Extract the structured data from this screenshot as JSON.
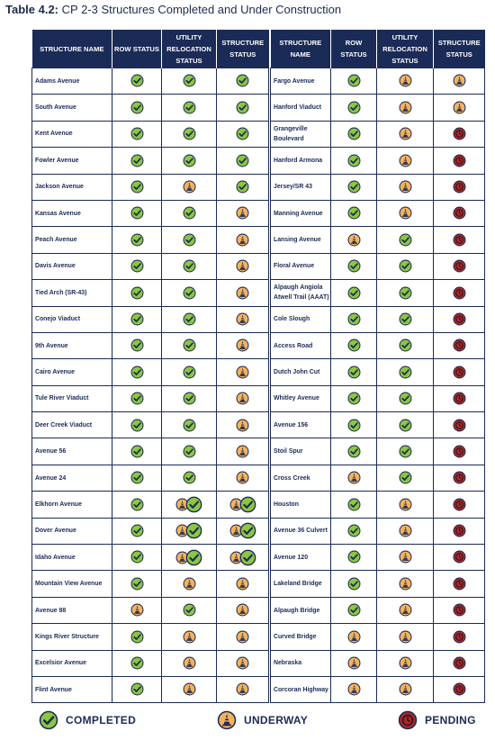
{
  "title": {
    "prefix": "Table 4.2:",
    "text": "CP 2-3 Structures Completed and Under Construction"
  },
  "headers": [
    "STRUCTURE NAME",
    "ROW STATUS",
    "UTILITY RELOCATION STATUS",
    "STRUCTURE STATUS"
  ],
  "status_colors": {
    "completed": "#8dc63f",
    "underway": "#f5b25a",
    "pending": "#b0262a",
    "outline": "#1b2b57"
  },
  "left_rows": [
    {
      "name": "Adams Avenue",
      "row": "completed",
      "utility": "completed",
      "structure": "completed"
    },
    {
      "name": "South Avenue",
      "row": "completed",
      "utility": "completed",
      "structure": "completed"
    },
    {
      "name": "Kent Avenue",
      "row": "completed",
      "utility": "completed",
      "structure": "completed"
    },
    {
      "name": "Fowler Avenue",
      "row": "completed",
      "utility": "completed",
      "structure": "completed"
    },
    {
      "name": "Jackson Avenue",
      "row": "completed",
      "utility": "underway",
      "structure": "completed"
    },
    {
      "name": "Kansas Avenue",
      "row": "completed",
      "utility": "completed",
      "structure": "underway"
    },
    {
      "name": "Peach Avenue",
      "row": "completed",
      "utility": "completed",
      "structure": "underway"
    },
    {
      "name": "Davis Avenue",
      "row": "completed",
      "utility": "completed",
      "structure": "underway"
    },
    {
      "name": "Tied Arch (SR-43)",
      "row": "completed",
      "utility": "completed",
      "structure": "underway"
    },
    {
      "name": "Conejo Viaduct",
      "row": "completed",
      "utility": "completed",
      "structure": "underway"
    },
    {
      "name": "9th Avenue",
      "row": "completed",
      "utility": "completed",
      "structure": "underway"
    },
    {
      "name": "Cairo Avenue",
      "row": "completed",
      "utility": "completed",
      "structure": "underway"
    },
    {
      "name": "Tule River Viaduct",
      "row": "completed",
      "utility": "completed",
      "structure": "underway"
    },
    {
      "name": "Deer Creek Viaduct",
      "row": "completed",
      "utility": "completed",
      "structure": "underway"
    },
    {
      "name": "Avenue 56",
      "row": "completed",
      "utility": "completed",
      "structure": "underway"
    },
    {
      "name": "Avenue 24",
      "row": "completed",
      "utility": "completed",
      "structure": "underway"
    },
    {
      "name": "Elkhorn Avenue",
      "row": "completed",
      "utility": "underway+completed",
      "structure": "underway+completed"
    },
    {
      "name": "Dover Avenue",
      "row": "completed",
      "utility": "underway+completed",
      "structure": "underway+completed"
    },
    {
      "name": "Idaho Avenue",
      "row": "completed",
      "utility": "underway+completed",
      "structure": "underway+completed"
    },
    {
      "name": "Mountain View Avenue",
      "row": "completed",
      "utility": "underway",
      "structure": "underway"
    },
    {
      "name": "Avenue 88",
      "row": "underway",
      "utility": "completed",
      "structure": "underway"
    },
    {
      "name": "Kings River Structure",
      "row": "completed",
      "utility": "underway",
      "structure": "underway"
    },
    {
      "name": "Excelsior Avenue",
      "row": "completed",
      "utility": "underway",
      "structure": "underway"
    },
    {
      "name": "Flint Avenue",
      "row": "completed",
      "utility": "underway",
      "structure": "underway"
    }
  ],
  "right_rows": [
    {
      "name": "Fargo Avenue",
      "row": "completed",
      "utility": "underway",
      "structure": "underway"
    },
    {
      "name": "Hanford Viaduct",
      "row": "completed",
      "utility": "underway",
      "structure": "underway"
    },
    {
      "name": "Grangeville Boulevard",
      "row": "completed",
      "utility": "underway",
      "structure": "pending"
    },
    {
      "name": "Hanford Armona",
      "row": "completed",
      "utility": "underway",
      "structure": "pending"
    },
    {
      "name": "Jersey/SR 43",
      "row": "completed",
      "utility": "underway",
      "structure": "pending"
    },
    {
      "name": "Manning Avenue",
      "row": "completed",
      "utility": "underway",
      "structure": "pending"
    },
    {
      "name": "Lansing Avenue",
      "row": "underway",
      "utility": "completed",
      "structure": "pending"
    },
    {
      "name": "Floral Avenue",
      "row": "completed",
      "utility": "completed",
      "structure": "pending"
    },
    {
      "name": "Alpaugh Angiola Atwell Trail (AAAT)",
      "row": "completed",
      "utility": "completed",
      "structure": "pending"
    },
    {
      "name": "Cole Slough",
      "row": "completed",
      "utility": "completed",
      "structure": "pending"
    },
    {
      "name": "Access Road",
      "row": "completed",
      "utility": "completed",
      "structure": "pending"
    },
    {
      "name": "Dutch John Cut",
      "row": "completed",
      "utility": "completed",
      "structure": "pending"
    },
    {
      "name": "Whitley Avenue",
      "row": "completed",
      "utility": "completed",
      "structure": "pending"
    },
    {
      "name": "Avenue 156",
      "row": "completed",
      "utility": "completed",
      "structure": "pending"
    },
    {
      "name": "Stoil Spur",
      "row": "completed",
      "utility": "completed",
      "structure": "pending"
    },
    {
      "name": "Cross Creek",
      "row": "underway",
      "utility": "completed",
      "structure": "pending"
    },
    {
      "name": "Houston",
      "row": "completed",
      "utility": "underway",
      "structure": "pending"
    },
    {
      "name": "Avenue 36 Culvert",
      "row": "completed",
      "utility": "underway",
      "structure": "pending"
    },
    {
      "name": "Avenue 120",
      "row": "completed",
      "utility": "underway",
      "structure": "pending"
    },
    {
      "name": "Lakeland Bridge",
      "row": "completed",
      "utility": "underway",
      "structure": "pending"
    },
    {
      "name": "Alpaugh Bridge",
      "row": "completed",
      "utility": "underway",
      "structure": "pending"
    },
    {
      "name": "Curved Bridge",
      "row": "underway",
      "utility": "underway",
      "structure": "pending"
    },
    {
      "name": "Nebraska",
      "row": "underway",
      "utility": "underway",
      "structure": "pending"
    },
    {
      "name": "Corcoran Highway",
      "row": "underway",
      "utility": "underway",
      "structure": "pending"
    }
  ],
  "legend": [
    {
      "icon": "completed",
      "label": "COMPLETED"
    },
    {
      "icon": "underway",
      "label": "UNDERWAY"
    },
    {
      "icon": "pending",
      "label": "PENDING"
    }
  ]
}
